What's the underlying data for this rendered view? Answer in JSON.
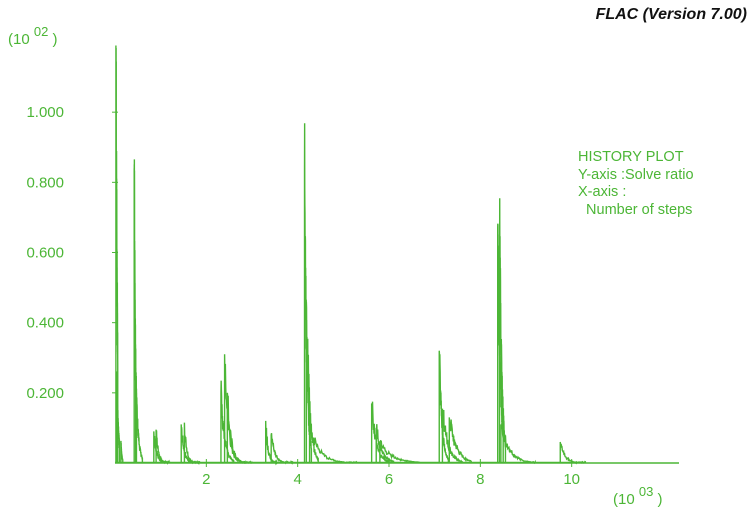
{
  "app_title": "FLAC (Version 7.00)",
  "colors": {
    "plot": "#4cb636",
    "title": "#111111"
  },
  "legend": {
    "title": "HISTORY PLOT",
    "y_axis": "Y-axis :Solve ratio",
    "x_axis": "X-axis :",
    "x_axis_name": "  Number of steps"
  },
  "chart_data": {
    "type": "line",
    "title": "HISTORY PLOT",
    "xlabel": "Number of steps",
    "ylabel": "Solve ratio",
    "x_multiplier": {
      "base": "10",
      "exponent": "03"
    },
    "y_multiplier": {
      "base": "10",
      "exponent": "02"
    },
    "xlim": [
      0,
      12.35
    ],
    "ylim": [
      0,
      1.2
    ],
    "x_ticks": [
      2,
      4,
      6,
      8,
      10
    ],
    "x_tick_labels": [
      "2",
      "4",
      "6",
      "8",
      "10"
    ],
    "y_ticks": [
      0.2,
      0.4,
      0.6,
      0.8,
      1.0
    ],
    "y_tick_labels": [
      "0.200",
      "0.400",
      "0.600",
      "0.800",
      "1.000"
    ],
    "grid": false,
    "legend_position": "right",
    "series": [
      {
        "spikes": [
          {
            "x": 0.02,
            "peak": 1.19,
            "decay": 0.03,
            "end": 0.06
          },
          {
            "x": 0.04,
            "peak": 0.22,
            "decay": 0.04,
            "end": 0.1
          },
          {
            "x": 0.13,
            "peak": 0.06,
            "decay": 0.02,
            "end": 0.17
          },
          {
            "x": 0.42,
            "peak": 0.84,
            "decay": 0.03,
            "end": 0.47
          },
          {
            "x": 0.45,
            "peak": 0.27,
            "decay": 0.05,
            "end": 0.6
          },
          {
            "x": 0.85,
            "peak": 0.09,
            "decay": 0.06,
            "end": 1.05
          },
          {
            "x": 0.9,
            "peak": 0.095,
            "decay": 0.05,
            "end": 1.2
          },
          {
            "x": 1.45,
            "peak": 0.11,
            "decay": 0.06,
            "end": 1.7
          },
          {
            "x": 1.52,
            "peak": 0.115,
            "decay": 0.05,
            "end": 1.85
          },
          {
            "x": 2.32,
            "peak": 0.2,
            "decay": 0.08,
            "end": 2.6
          },
          {
            "x": 2.4,
            "peak": 0.31,
            "decay": 0.08,
            "end": 2.9
          },
          {
            "x": 2.46,
            "peak": 0.2,
            "decay": 0.08,
            "end": 3.0
          },
          {
            "x": 3.3,
            "peak": 0.12,
            "decay": 0.05,
            "end": 3.55
          },
          {
            "x": 3.42,
            "peak": 0.08,
            "decay": 0.08,
            "end": 3.9
          },
          {
            "x": 4.15,
            "peak": 0.83,
            "decay": 0.05,
            "end": 4.3
          },
          {
            "x": 4.19,
            "peak": 0.46,
            "decay": 0.07,
            "end": 4.45
          },
          {
            "x": 4.26,
            "peak": 0.11,
            "decay": 0.2,
            "end": 5.3
          },
          {
            "x": 5.62,
            "peak": 0.17,
            "decay": 0.1,
            "end": 6.0
          },
          {
            "x": 5.72,
            "peak": 0.1,
            "decay": 0.12,
            "end": 6.1
          },
          {
            "x": 5.8,
            "peak": 0.06,
            "decay": 0.25,
            "end": 6.7
          },
          {
            "x": 7.1,
            "peak": 0.32,
            "decay": 0.06,
            "end": 7.3
          },
          {
            "x": 7.17,
            "peak": 0.155,
            "decay": 0.12,
            "end": 7.6
          },
          {
            "x": 7.32,
            "peak": 0.13,
            "decay": 0.15,
            "end": 7.8
          },
          {
            "x": 8.38,
            "peak": 0.67,
            "decay": 0.06,
            "end": 8.5
          },
          {
            "x": 8.42,
            "peak": 0.68,
            "decay": 0.05,
            "end": 8.55
          },
          {
            "x": 8.45,
            "peak": 0.11,
            "decay": 0.18,
            "end": 9.2
          },
          {
            "x": 9.75,
            "peak": 0.06,
            "decay": 0.1,
            "end": 10.3
          }
        ]
      }
    ]
  }
}
